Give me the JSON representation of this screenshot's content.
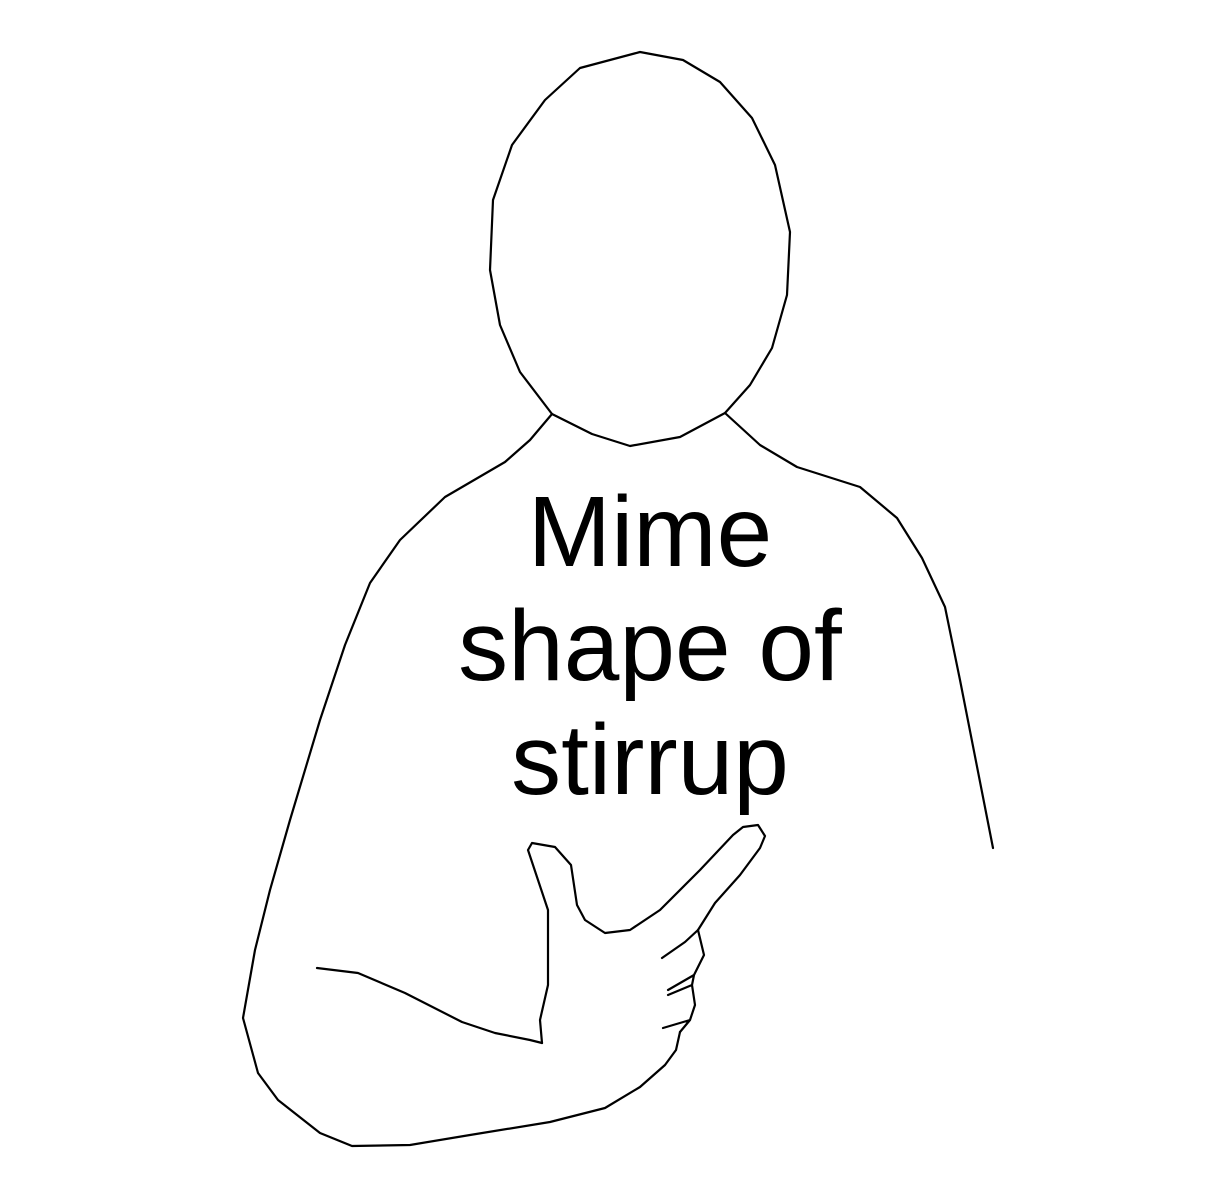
{
  "caption": {
    "lines": [
      "Mime",
      "shape of",
      "stirrup"
    ]
  },
  "colors": {
    "background": "#ffffff",
    "line": "#000000"
  }
}
